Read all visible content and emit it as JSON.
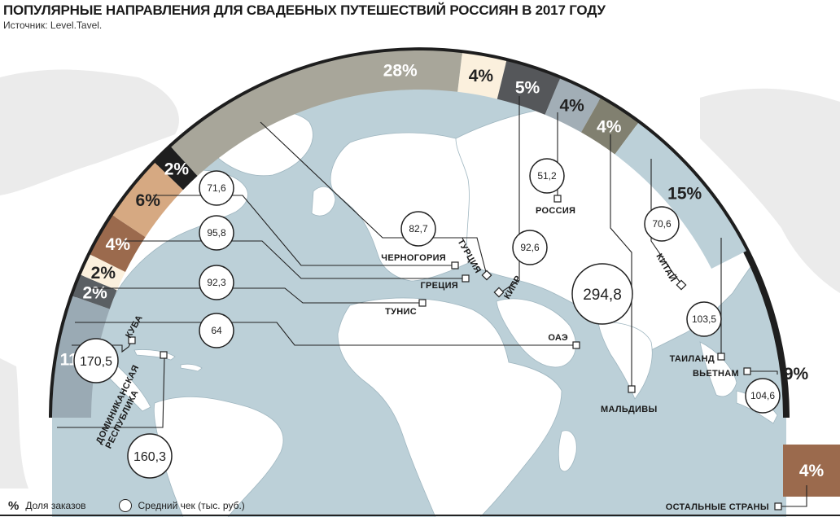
{
  "header": {
    "title": "ПОПУЛЯРНЫЕ НАПРАВЛЕНИЯ ДЛЯ СВАДЕБНЫХ ПУТЕШЕСТВИЙ РОССИЯН В 2017 ГОДУ",
    "source": "Источник: Level.Tavel."
  },
  "legend": {
    "pct_symbol": "%",
    "pct_label": "Доля заказов",
    "check_label": "Средний чек (тыс. руб.)"
  },
  "colors": {
    "ocean": "#bcd0d8",
    "land": "#ffffff",
    "outer_land": "#ebebeb",
    "rim": "#1e1e1e"
  },
  "chart_data": {
    "type": "pie",
    "title": "ПОПУЛЯРНЫЕ НАПРАВЛЕНИЯ ДЛЯ СВАДЕБНЫХ ПУТЕШЕСТВИЙ РОССИЯН В 2017 ГОДУ",
    "share_unit": "%",
    "check_unit": "тыс. руб.",
    "segments": [
      {
        "destination": "ДОМИНИКАНСКАЯ РЕСПУБЛИКА",
        "share": 11,
        "label": "11%",
        "color": "#9aaab4",
        "text_color": "#ffffff",
        "avg_check": 160.3,
        "avg_check_label": "160,3"
      },
      {
        "destination": "КУБА",
        "share": 2,
        "label": "2%",
        "color": "#5a5f63",
        "text_color": "#ffffff",
        "avg_check": 170.5,
        "avg_check_label": "170,5"
      },
      {
        "destination": "ОАЭ",
        "share": 2,
        "label": "2%",
        "color": "#fbf0dd",
        "text_color": "#222222",
        "avg_check": 64,
        "avg_check_label": "64"
      },
      {
        "destination": "ТУНИС",
        "share": 4,
        "label": "4%",
        "color": "#9b6a4d",
        "text_color": "#ffffff",
        "avg_check": 92.3,
        "avg_check_label": "92,3"
      },
      {
        "destination": "ГРЕЦИЯ",
        "share": 6,
        "label": "6%",
        "color": "#d6a982",
        "text_color": "#222222",
        "avg_check": 95.8,
        "avg_check_label": "95,8"
      },
      {
        "destination": "ЧЕРНОГОРИЯ",
        "share": 2,
        "label": "2%",
        "color": "#1e1e1e",
        "text_color": "#ffffff",
        "avg_check": 71.6,
        "avg_check_label": "71,6"
      },
      {
        "destination": "ТУРЦИЯ",
        "share": 28,
        "label": "28%",
        "color": "#a8a69a",
        "text_color": "#ffffff",
        "avg_check": 82.7,
        "avg_check_label": "82,7"
      },
      {
        "destination": "КИПР",
        "share": 4,
        "label": "4%",
        "color": "#fbf0dd",
        "text_color": "#222222",
        "avg_check": 92.6,
        "avg_check_label": "92,6"
      },
      {
        "destination": "РОССИЯ",
        "share": 5,
        "label": "5%",
        "color": "#55575a",
        "text_color": "#ffffff",
        "avg_check": 51.2,
        "avg_check_label": "51,2"
      },
      {
        "destination": "МАЛЬДИВЫ",
        "share": 4,
        "label": "4%",
        "color": "#a2aeb6",
        "text_color": "#222222",
        "avg_check": 294.8,
        "avg_check_label": "294,8"
      },
      {
        "destination": "КИТАЙ",
        "share": 4,
        "label": "4%",
        "color": "#818070",
        "text_color": "#ffffff",
        "avg_check": 70.6,
        "avg_check_label": "70,6"
      },
      {
        "destination": "ТАИЛАНД",
        "share": 15,
        "label": "15%",
        "color": "#bcd0d8",
        "text_color": "#222222",
        "avg_check": 103.5,
        "avg_check_label": "103,5"
      },
      {
        "destination": "ВЬЕТНАМ",
        "share": 9,
        "label": "9%",
        "color": "#ffffff",
        "text_color": "#222222",
        "avg_check": 104.6,
        "avg_check_label": "104,6"
      },
      {
        "destination": "ОСТАЛЬНЫЕ СТРАНЫ",
        "share": 4,
        "label": "4%",
        "color": "#9b6a4d",
        "text_color": "#ffffff",
        "avg_check": null,
        "avg_check_label": ""
      }
    ]
  }
}
